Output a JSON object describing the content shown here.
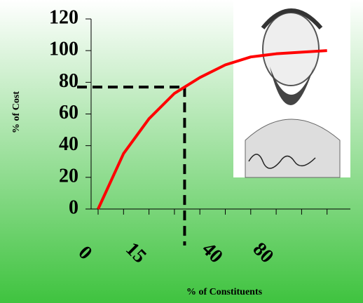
{
  "chart_data": {
    "type": "line",
    "x_label": "% of Constituents",
    "y_label": "% of Cost",
    "categories": [
      "0",
      null,
      "15",
      null,
      null,
      "40",
      null,
      "80",
      null,
      null
    ],
    "series": [
      {
        "color": "#ff0000",
        "values": [
          0,
          35,
          57,
          73,
          83,
          91,
          96,
          98,
          99,
          100
        ]
      }
    ],
    "ylim": [
      0,
      120
    ],
    "yticks": [
      0,
      20,
      40,
      60,
      80,
      100,
      120
    ],
    "reference": {
      "y": 77
    }
  }
}
